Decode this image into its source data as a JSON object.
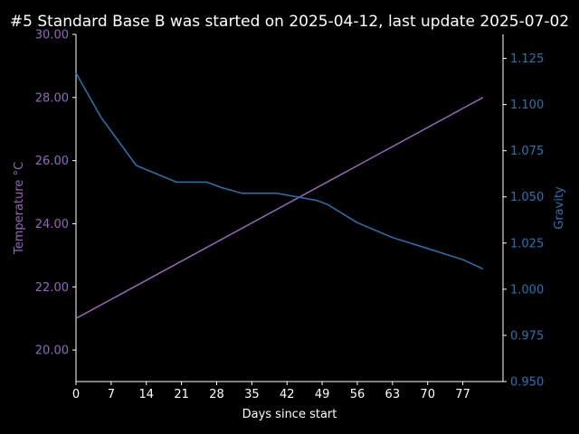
{
  "chart_data": {
    "type": "line",
    "title": "#5 Standard Base B was started on 2025-04-12, last update 2025-07-02",
    "xlabel": "Days since start",
    "ylabel_left": "Temperature °C",
    "ylabel_right": "Gravity",
    "xlim": [
      0,
      85
    ],
    "ylim_left": [
      19.0,
      30.0
    ],
    "ylim_right": [
      0.95,
      1.138
    ],
    "x_ticks": [
      0,
      7,
      14,
      21,
      28,
      35,
      42,
      49,
      56,
      63,
      70,
      77
    ],
    "y_left_ticks": [
      "20.00",
      "22.00",
      "24.00",
      "26.00",
      "28.00",
      "30.00"
    ],
    "y_right_ticks": [
      "0.950",
      "0.975",
      "1.000",
      "1.025",
      "1.050",
      "1.075",
      "1.100",
      "1.125"
    ],
    "grid": false,
    "colors": {
      "background": "#000000",
      "axes": "#ffffff",
      "temperature": "#9467bd",
      "gravity": "#1f77b4"
    },
    "series": [
      {
        "axis": "left",
        "x": [
          0,
          81
        ],
        "values": [
          21.0,
          28.0
        ]
      },
      {
        "axis": "right",
        "x": [
          0,
          5,
          12,
          20,
          26,
          29,
          33,
          40,
          44,
          48,
          50,
          56,
          63,
          70,
          77,
          81
        ],
        "values": [
          1.117,
          1.093,
          1.067,
          1.058,
          1.058,
          1.055,
          1.052,
          1.052,
          1.05,
          1.048,
          1.046,
          1.036,
          1.028,
          1.022,
          1.016,
          1.011
        ]
      }
    ]
  }
}
